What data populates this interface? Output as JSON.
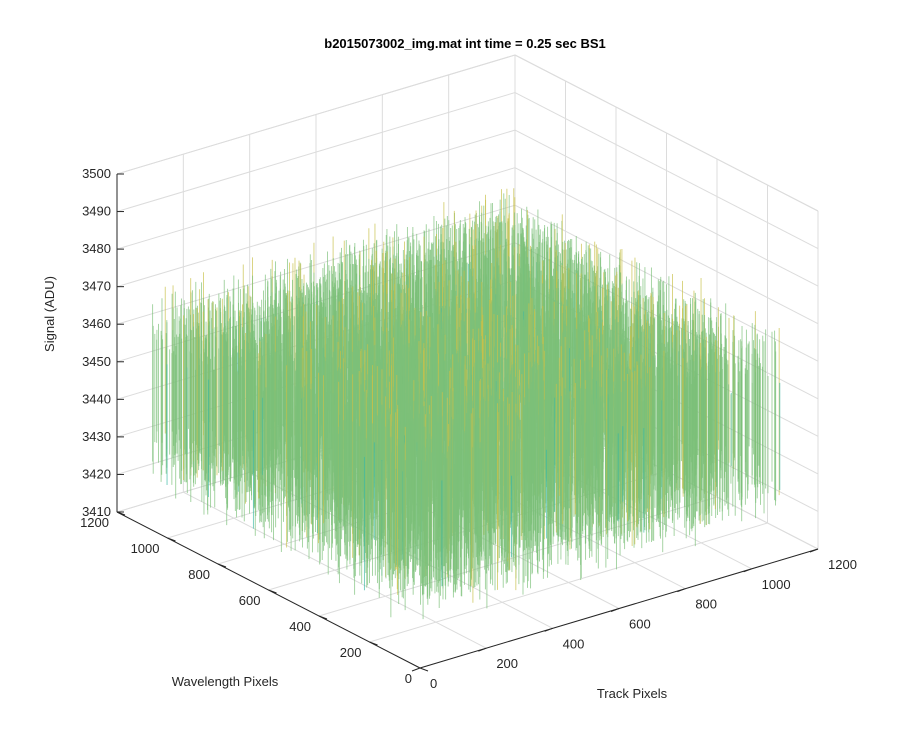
{
  "chart_data": {
    "type": "surface",
    "title": "b2015073002_img.mat int time = 0.25 sec   BS1",
    "xlabel": "Track Pixels",
    "ylabel": "Wavelength Pixels",
    "zlabel": "Signal (ADU)",
    "x_ticks": [
      "0",
      "200",
      "400",
      "600",
      "800",
      "1000",
      "1200"
    ],
    "y_ticks": [
      "0",
      "200",
      "400",
      "600",
      "800",
      "1000",
      "1200"
    ],
    "z_ticks": [
      "3410",
      "3420",
      "3430",
      "3440",
      "3450",
      "3460",
      "3470",
      "3480",
      "3490",
      "3500"
    ],
    "xlim": [
      0,
      1200
    ],
    "ylim": [
      0,
      1200
    ],
    "zlim": [
      3410,
      3500
    ],
    "x_extent": [
      0,
      1100
    ],
    "y_extent": [
      0,
      1100
    ],
    "signal_mean": 3450,
    "signal_spread": [
      3420,
      3490
    ],
    "grid": true,
    "view": "3-D perspective, box outline with gray gridlines",
    "colormap": [
      "#1f6fb4",
      "#1aa0c8",
      "#3bb8a4",
      "#7cc07a",
      "#c8c04a"
    ]
  }
}
